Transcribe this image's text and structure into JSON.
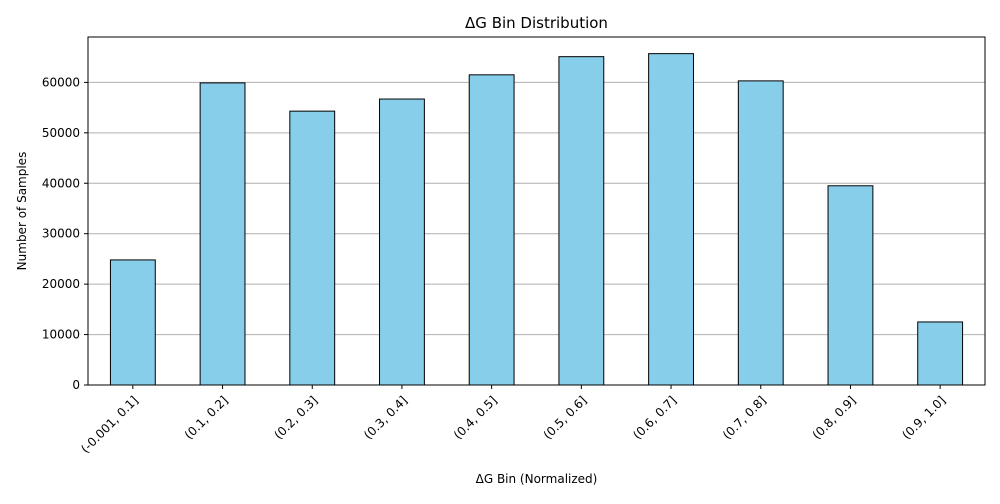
{
  "chart_data": {
    "type": "bar",
    "title": "ΔG Bin Distribution",
    "xlabel": "ΔG Bin (Normalized)",
    "ylabel": "Number of Samples",
    "categories": [
      "(-0.001, 0.1]",
      "(0.1, 0.2]",
      "(0.2, 0.3]",
      "(0.3, 0.4]",
      "(0.4, 0.5]",
      "(0.5, 0.6]",
      "(0.6, 0.7]",
      "(0.7, 0.8]",
      "(0.8, 0.9]",
      "(0.9, 1.0]"
    ],
    "values": [
      24800,
      59900,
      54300,
      56700,
      61500,
      65100,
      65700,
      60300,
      39500,
      12500
    ],
    "ylim": [
      0,
      69000
    ],
    "yticks": [
      0,
      10000,
      20000,
      30000,
      40000,
      50000,
      60000
    ],
    "grid": "horizontal",
    "legend": "none",
    "bar_color": "#87ceeb",
    "bar_edge_color": "#000000",
    "grid_color": "#b0b0b0"
  }
}
